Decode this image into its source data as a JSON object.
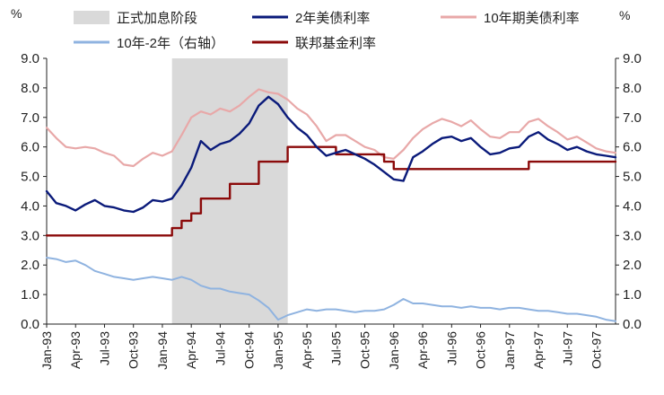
{
  "chart_data": {
    "type": "line",
    "title": "",
    "left_axis": {
      "unit_label": "%",
      "ylim": [
        0,
        9
      ],
      "ticks": [
        "0.0",
        "1.0",
        "2.0",
        "3.0",
        "4.0",
        "5.0",
        "6.0",
        "7.0",
        "8.0",
        "9.0"
      ]
    },
    "right_axis": {
      "unit_label": "%",
      "ylim": [
        0,
        9
      ],
      "ticks": [
        "0.0",
        "1.0",
        "2.0",
        "3.0",
        "4.0",
        "5.0",
        "6.0",
        "7.0",
        "8.0",
        "9.0"
      ]
    },
    "x_ticks": [
      "Jan-93",
      "Apr-93",
      "Jul-93",
      "Oct-93",
      "Jan-94",
      "Apr-94",
      "Jul-94",
      "Oct-94",
      "Jan-95",
      "Apr-95",
      "Jul-95",
      "Oct-95",
      "Jan-96",
      "Apr-96",
      "Jul-96",
      "Oct-96",
      "Jan-97",
      "Apr-97",
      "Jul-97",
      "Oct-97"
    ],
    "xlim": [
      "1993-01",
      "1997-12"
    ],
    "shaded_period": {
      "label": "正式加息阶段",
      "start": "1994-02",
      "end": "1995-02",
      "color": "#d9d9d9"
    },
    "legend_position": "top",
    "series": [
      {
        "name": "2年美债利率",
        "color": "#0a1a7a",
        "width": 2.4,
        "axis": "left",
        "step": false,
        "points": [
          [
            "1993-01",
            4.5
          ],
          [
            "1993-02",
            4.1
          ],
          [
            "1993-03",
            4.0
          ],
          [
            "1993-04",
            3.85
          ],
          [
            "1993-05",
            4.05
          ],
          [
            "1993-06",
            4.2
          ],
          [
            "1993-07",
            4.0
          ],
          [
            "1993-08",
            3.95
          ],
          [
            "1993-09",
            3.85
          ],
          [
            "1993-10",
            3.8
          ],
          [
            "1993-11",
            3.95
          ],
          [
            "1993-12",
            4.2
          ],
          [
            "1994-01",
            4.15
          ],
          [
            "1994-02",
            4.25
          ],
          [
            "1994-03",
            4.7
          ],
          [
            "1994-04",
            5.3
          ],
          [
            "1994-05",
            6.2
          ],
          [
            "1994-06",
            5.9
          ],
          [
            "1994-07",
            6.1
          ],
          [
            "1994-08",
            6.2
          ],
          [
            "1994-09",
            6.45
          ],
          [
            "1994-10",
            6.8
          ],
          [
            "1994-11",
            7.4
          ],
          [
            "1994-12",
            7.7
          ],
          [
            "1995-01",
            7.45
          ],
          [
            "1995-02",
            7.0
          ],
          [
            "1995-03",
            6.65
          ],
          [
            "1995-04",
            6.4
          ],
          [
            "1995-05",
            6.0
          ],
          [
            "1995-06",
            5.7
          ],
          [
            "1995-07",
            5.8
          ],
          [
            "1995-08",
            5.9
          ],
          [
            "1995-09",
            5.75
          ],
          [
            "1995-10",
            5.6
          ],
          [
            "1995-11",
            5.4
          ],
          [
            "1995-12",
            5.15
          ],
          [
            "1996-01",
            4.9
          ],
          [
            "1996-02",
            4.85
          ],
          [
            "1996-03",
            5.65
          ],
          [
            "1996-04",
            5.85
          ],
          [
            "1996-05",
            6.1
          ],
          [
            "1996-06",
            6.3
          ],
          [
            "1996-07",
            6.35
          ],
          [
            "1996-08",
            6.2
          ],
          [
            "1996-09",
            6.3
          ],
          [
            "1996-10",
            6.0
          ],
          [
            "1996-11",
            5.75
          ],
          [
            "1996-12",
            5.8
          ],
          [
            "1997-01",
            5.95
          ],
          [
            "1997-02",
            6.0
          ],
          [
            "1997-03",
            6.35
          ],
          [
            "1997-04",
            6.5
          ],
          [
            "1997-05",
            6.25
          ],
          [
            "1997-06",
            6.1
          ],
          [
            "1997-07",
            5.9
          ],
          [
            "1997-08",
            6.0
          ],
          [
            "1997-09",
            5.85
          ],
          [
            "1997-10",
            5.75
          ],
          [
            "1997-11",
            5.7
          ],
          [
            "1997-12",
            5.65
          ]
        ]
      },
      {
        "name": "10年期美债利率",
        "color": "#e8a8a8",
        "width": 2.2,
        "axis": "left",
        "step": false,
        "points": [
          [
            "1993-01",
            6.65
          ],
          [
            "1993-02",
            6.3
          ],
          [
            "1993-03",
            6.0
          ],
          [
            "1993-04",
            5.95
          ],
          [
            "1993-05",
            6.0
          ],
          [
            "1993-06",
            5.95
          ],
          [
            "1993-07",
            5.8
          ],
          [
            "1993-08",
            5.7
          ],
          [
            "1993-09",
            5.4
          ],
          [
            "1993-10",
            5.35
          ],
          [
            "1993-11",
            5.6
          ],
          [
            "1993-12",
            5.8
          ],
          [
            "1994-01",
            5.7
          ],
          [
            "1994-02",
            5.85
          ],
          [
            "1994-03",
            6.4
          ],
          [
            "1994-04",
            7.0
          ],
          [
            "1994-05",
            7.2
          ],
          [
            "1994-06",
            7.1
          ],
          [
            "1994-07",
            7.3
          ],
          [
            "1994-08",
            7.2
          ],
          [
            "1994-09",
            7.4
          ],
          [
            "1994-10",
            7.7
          ],
          [
            "1994-11",
            7.95
          ],
          [
            "1994-12",
            7.85
          ],
          [
            "1995-01",
            7.8
          ],
          [
            "1995-02",
            7.6
          ],
          [
            "1995-03",
            7.3
          ],
          [
            "1995-04",
            7.1
          ],
          [
            "1995-05",
            6.7
          ],
          [
            "1995-06",
            6.2
          ],
          [
            "1995-07",
            6.4
          ],
          [
            "1995-08",
            6.4
          ],
          [
            "1995-09",
            6.2
          ],
          [
            "1995-10",
            6.0
          ],
          [
            "1995-11",
            5.9
          ],
          [
            "1995-12",
            5.65
          ],
          [
            "1996-01",
            5.6
          ],
          [
            "1996-02",
            5.9
          ],
          [
            "1996-03",
            6.3
          ],
          [
            "1996-04",
            6.6
          ],
          [
            "1996-05",
            6.8
          ],
          [
            "1996-06",
            6.95
          ],
          [
            "1996-07",
            6.85
          ],
          [
            "1996-08",
            6.7
          ],
          [
            "1996-09",
            6.9
          ],
          [
            "1996-10",
            6.6
          ],
          [
            "1996-11",
            6.35
          ],
          [
            "1996-12",
            6.3
          ],
          [
            "1997-01",
            6.5
          ],
          [
            "1997-02",
            6.5
          ],
          [
            "1997-03",
            6.85
          ],
          [
            "1997-04",
            6.95
          ],
          [
            "1997-05",
            6.7
          ],
          [
            "1997-06",
            6.5
          ],
          [
            "1997-07",
            6.25
          ],
          [
            "1997-08",
            6.35
          ],
          [
            "1997-09",
            6.15
          ],
          [
            "1997-10",
            5.95
          ],
          [
            "1997-11",
            5.85
          ],
          [
            "1997-12",
            5.8
          ]
        ]
      },
      {
        "name": "10年-2年（右轴）",
        "color": "#8fb3e0",
        "width": 2.0,
        "axis": "right",
        "step": false,
        "points": [
          [
            "1993-01",
            2.25
          ],
          [
            "1993-02",
            2.2
          ],
          [
            "1993-03",
            2.1
          ],
          [
            "1993-04",
            2.15
          ],
          [
            "1993-05",
            2.0
          ],
          [
            "1993-06",
            1.8
          ],
          [
            "1993-07",
            1.7
          ],
          [
            "1993-08",
            1.6
          ],
          [
            "1993-09",
            1.55
          ],
          [
            "1993-10",
            1.5
          ],
          [
            "1993-11",
            1.55
          ],
          [
            "1993-12",
            1.6
          ],
          [
            "1994-01",
            1.55
          ],
          [
            "1994-02",
            1.5
          ],
          [
            "1994-03",
            1.6
          ],
          [
            "1994-04",
            1.5
          ],
          [
            "1994-05",
            1.3
          ],
          [
            "1994-06",
            1.2
          ],
          [
            "1994-07",
            1.2
          ],
          [
            "1994-08",
            1.1
          ],
          [
            "1994-09",
            1.05
          ],
          [
            "1994-10",
            1.0
          ],
          [
            "1994-11",
            0.8
          ],
          [
            "1994-12",
            0.55
          ],
          [
            "1995-01",
            0.15
          ],
          [
            "1995-02",
            0.3
          ],
          [
            "1995-03",
            0.4
          ],
          [
            "1995-04",
            0.5
          ],
          [
            "1995-05",
            0.45
          ],
          [
            "1995-06",
            0.5
          ],
          [
            "1995-07",
            0.5
          ],
          [
            "1995-08",
            0.45
          ],
          [
            "1995-09",
            0.4
          ],
          [
            "1995-10",
            0.45
          ],
          [
            "1995-11",
            0.45
          ],
          [
            "1995-12",
            0.5
          ],
          [
            "1996-01",
            0.65
          ],
          [
            "1996-02",
            0.85
          ],
          [
            "1996-03",
            0.7
          ],
          [
            "1996-04",
            0.7
          ],
          [
            "1996-05",
            0.65
          ],
          [
            "1996-06",
            0.6
          ],
          [
            "1996-07",
            0.6
          ],
          [
            "1996-08",
            0.55
          ],
          [
            "1996-09",
            0.6
          ],
          [
            "1996-10",
            0.55
          ],
          [
            "1996-11",
            0.55
          ],
          [
            "1996-12",
            0.5
          ],
          [
            "1997-01",
            0.55
          ],
          [
            "1997-02",
            0.55
          ],
          [
            "1997-03",
            0.5
          ],
          [
            "1997-04",
            0.45
          ],
          [
            "1997-05",
            0.45
          ],
          [
            "1997-06",
            0.4
          ],
          [
            "1997-07",
            0.35
          ],
          [
            "1997-08",
            0.35
          ],
          [
            "1997-09",
            0.3
          ],
          [
            "1997-10",
            0.25
          ],
          [
            "1997-11",
            0.15
          ],
          [
            "1997-12",
            0.1
          ]
        ]
      },
      {
        "name": "联邦基金利率",
        "color": "#8b0a0a",
        "width": 2.4,
        "axis": "left",
        "step": true,
        "points": [
          [
            "1993-01",
            3.0
          ],
          [
            "1994-02",
            3.25
          ],
          [
            "1994-03",
            3.5
          ],
          [
            "1994-04",
            3.75
          ],
          [
            "1994-05",
            4.25
          ],
          [
            "1994-08",
            4.75
          ],
          [
            "1994-11",
            5.5
          ],
          [
            "1995-02",
            6.0
          ],
          [
            "1995-07",
            5.75
          ],
          [
            "1995-12",
            5.5
          ],
          [
            "1996-01",
            5.25
          ],
          [
            "1997-03",
            5.5
          ],
          [
            "1997-12",
            5.5
          ]
        ]
      }
    ]
  }
}
